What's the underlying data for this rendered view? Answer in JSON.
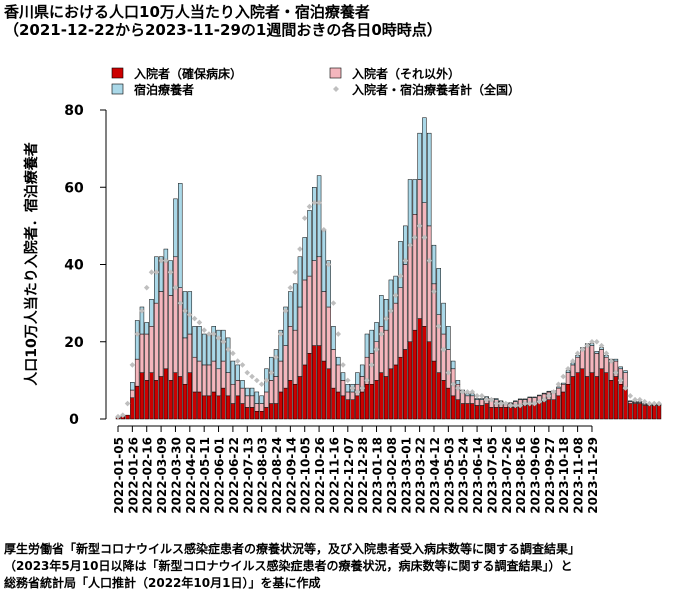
{
  "title": "香川県における人口10万人当たり入院者・宿泊療養者",
  "subtitle": "（2021-12-22から2023-11-29の1週間おきの各日0時時点）",
  "source_lines": [
    "厚生労働省「新型コロナウイルス感染症患者の療養状況等，及び入院患者受入病床数等に関する調査結果」",
    "（2023年5月10日以降は「新型コロナウイルス感染症患者の療養状況，病床数等に関する調査結果」）と",
    "総務省統計局「人口推計（2022年10月1日）」を基に作成"
  ],
  "chart_data": {
    "type": "bar",
    "stacked": true,
    "ylabel": "人口10万人当たり入院者．宿泊療養者",
    "ylim": [
      0,
      80
    ],
    "yticks": [
      0,
      20,
      40,
      60,
      80
    ],
    "legend_placement": "top",
    "grid": false,
    "series": [
      {
        "name": "入院者（確保病床）",
        "color": "#cc0000",
        "values": [
          0.4,
          0.6,
          1.0,
          5.5,
          8.5,
          12,
          10,
          12,
          10,
          11,
          13,
          10,
          12,
          11,
          9,
          12,
          7,
          7,
          6,
          6,
          7,
          6,
          8,
          6,
          4,
          6,
          4,
          3,
          3,
          2,
          2,
          3,
          4,
          4,
          7,
          8,
          10,
          9,
          11,
          14,
          17,
          19,
          19,
          15,
          13,
          8,
          7,
          6,
          5,
          5,
          6,
          7,
          9,
          9,
          10,
          12,
          11,
          13,
          14,
          16,
          18,
          20,
          23,
          26,
          24,
          20,
          15,
          12,
          10,
          8,
          6,
          5,
          4,
          4,
          4,
          3.5,
          3.5,
          4,
          3,
          3,
          3,
          3,
          3,
          3,
          3.5,
          3.5,
          4,
          4,
          4.5,
          4.5,
          5,
          5,
          6,
          7,
          9,
          11,
          12,
          13,
          11,
          12,
          11,
          13,
          12,
          10,
          11,
          9,
          8,
          4,
          4,
          4,
          3.5,
          3.5,
          3.5,
          3.5
        ]
      },
      {
        "name": "入院者（それ以外）",
        "color": "#f4b6bd",
        "values": [
          0,
          0,
          0,
          2,
          7,
          10,
          12,
          12,
          20,
          22,
          28,
          22,
          30,
          23,
          12,
          10,
          9,
          8,
          8,
          8,
          8,
          7,
          7,
          6,
          5,
          4,
          4,
          3,
          3,
          2,
          2,
          4,
          6,
          7,
          8,
          11,
          14,
          14,
          18,
          22,
          20,
          22,
          23,
          18,
          16,
          10,
          7,
          4,
          2,
          2,
          3,
          4,
          7,
          8,
          10,
          12,
          12,
          15,
          16,
          18,
          22,
          25,
          30,
          36,
          32,
          30,
          20,
          15,
          12,
          10,
          7,
          4,
          3,
          2,
          2,
          1.5,
          1.5,
          1.5,
          2,
          2,
          1.5,
          1,
          1,
          1.5,
          1.5,
          1.5,
          1.5,
          1.5,
          1.5,
          2,
          2,
          2,
          2,
          2,
          3,
          3,
          4,
          5,
          8,
          7,
          6,
          5,
          4,
          5,
          4,
          4,
          4,
          0.5,
          0.3,
          0.3,
          0.3,
          0.3,
          0.3,
          0.3
        ]
      },
      {
        "name": "宿泊療養者",
        "color": "#aad8e8",
        "values": [
          0,
          0,
          0,
          2,
          10,
          7,
          3,
          7,
          12,
          9,
          3,
          9,
          15,
          27,
          12,
          11,
          8,
          9,
          8,
          8,
          9,
          10,
          8,
          9,
          6,
          4,
          2,
          2,
          2,
          3,
          2,
          6,
          6,
          7,
          8,
          10,
          9,
          12,
          13,
          11,
          17,
          19,
          21,
          16,
          12,
          6,
          2,
          2,
          2,
          2,
          3,
          3,
          6,
          6,
          5,
          8,
          8,
          8,
          7,
          12,
          10,
          17,
          9,
          12,
          22,
          24,
          10,
          12,
          8,
          6,
          2,
          1,
          0.5,
          0.5,
          0.5,
          0.3,
          0.3,
          0.3,
          0.3,
          0.3,
          0.2,
          0.2,
          0.2,
          0.2,
          0.2,
          0.2,
          0.2,
          0.2,
          0.2,
          0.2,
          0.2,
          0.3,
          0.3,
          0.3,
          0.5,
          0.5,
          0.5,
          0.5,
          0.5,
          0.5,
          0.5,
          0.5,
          0.5,
          0.5,
          0.5,
          0.5,
          0.5,
          0.2,
          0.2,
          0.2,
          0.2,
          0.2,
          0.2,
          0.2
        ]
      },
      {
        "name": "入院者・宿泊療養者計（全国）",
        "color": "#bfbfbf",
        "kind": "point",
        "values": [
          0.6,
          1.0,
          4,
          14,
          22,
          28,
          34,
          38,
          38,
          41,
          41,
          38,
          34,
          30,
          28,
          27,
          26,
          25,
          23,
          22,
          22,
          21,
          20,
          18,
          17,
          15,
          14,
          12,
          11,
          10,
          9,
          10,
          12,
          16,
          22,
          28,
          34,
          38,
          44,
          52,
          55,
          56,
          56,
          49,
          40,
          30,
          22,
          14,
          10,
          8,
          7,
          8,
          10,
          14,
          18,
          22,
          26,
          28,
          32,
          37,
          41,
          45,
          47,
          50,
          47,
          41,
          33,
          24,
          18,
          12,
          9,
          8,
          7,
          7,
          7,
          6,
          6,
          5,
          5,
          4,
          4,
          4,
          3.5,
          3.5,
          3.5,
          4,
          4,
          4,
          4.5,
          5,
          6,
          7,
          9,
          11,
          13,
          15,
          17,
          18,
          19,
          20,
          20,
          19,
          17,
          15,
          12,
          10,
          8,
          6,
          5,
          5,
          4.5,
          4,
          4,
          4
        ]
      }
    ],
    "tick_dates": [
      "2022-01-05",
      "2022-01-26",
      "2022-02-16",
      "2022-03-09",
      "2022-03-30",
      "2022-04-20",
      "2022-05-11",
      "2022-06-01",
      "2022-06-22",
      "2022-07-13",
      "2022-08-03",
      "2022-08-24",
      "2022-09-14",
      "2022-10-05",
      "2022-10-26",
      "2022-11-16",
      "2022-12-07",
      "2022-12-28",
      "2023-01-18",
      "2023-02-08",
      "2023-03-01",
      "2023-03-22",
      "2023-04-12",
      "2023-05-03",
      "2023-05-24",
      "2023-06-14",
      "2023-07-05",
      "2023-07-26",
      "2023-08-16",
      "2023-09-06",
      "2023-09-27",
      "2023-10-18",
      "2023-11-08",
      "2023-11-29"
    ]
  }
}
